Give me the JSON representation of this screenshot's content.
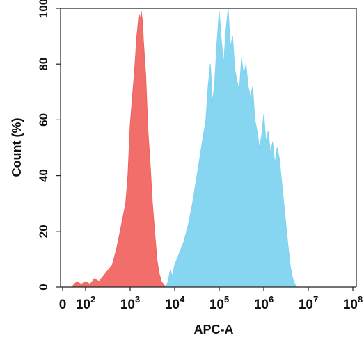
{
  "chart_data": {
    "type": "area",
    "xlabel": "APC-A",
    "ylabel": "Count  (%)",
    "x_scale": "log",
    "xlim": [
      0,
      100000000
    ],
    "ylim": [
      0,
      100
    ],
    "grid": false,
    "x_ticks": [
      {
        "value": 0,
        "base": "0",
        "exp": ""
      },
      {
        "value": 100,
        "base": "10",
        "exp": "2"
      },
      {
        "value": 1000,
        "base": "10",
        "exp": "3"
      },
      {
        "value": 10000,
        "base": "10",
        "exp": "4"
      },
      {
        "value": 100000,
        "base": "10",
        "exp": "5"
      },
      {
        "value": 1000000,
        "base": "10",
        "exp": "6"
      },
      {
        "value": 10000000,
        "base": "10",
        "exp": "7"
      },
      {
        "value": 100000000,
        "base": "10",
        "exp": "8"
      }
    ],
    "y_ticks": [
      "0",
      "20",
      "40",
      "60",
      "80",
      "100"
    ],
    "series": [
      {
        "color": "#f0625e",
        "points": [
          [
            40,
            0
          ],
          [
            50,
            1
          ],
          [
            63,
            2
          ],
          [
            80,
            1
          ],
          [
            100,
            2
          ],
          [
            126,
            1
          ],
          [
            158,
            3
          ],
          [
            200,
            2
          ],
          [
            251,
            4
          ],
          [
            316,
            6
          ],
          [
            398,
            8
          ],
          [
            501,
            14
          ],
          [
            631,
            22
          ],
          [
            708,
            26
          ],
          [
            794,
            30
          ],
          [
            891,
            40
          ],
          [
            1000,
            58
          ],
          [
            1122,
            68
          ],
          [
            1259,
            78
          ],
          [
            1413,
            90
          ],
          [
            1585,
            98
          ],
          [
            1700,
            96
          ],
          [
            1778,
            99
          ],
          [
            1900,
            95
          ],
          [
            1995,
            88
          ],
          [
            2239,
            76
          ],
          [
            2512,
            56
          ],
          [
            2818,
            44
          ],
          [
            3162,
            30
          ],
          [
            3548,
            20
          ],
          [
            3981,
            10
          ],
          [
            4467,
            5
          ],
          [
            5012,
            2
          ],
          [
            5623,
            1
          ],
          [
            6310,
            0
          ]
        ]
      },
      {
        "color": "#7fd3f0",
        "points": [
          [
            6310,
            0
          ],
          [
            7079,
            2
          ],
          [
            7943,
            6
          ],
          [
            8913,
            4
          ],
          [
            10000,
            8
          ],
          [
            12589,
            12
          ],
          [
            15849,
            16
          ],
          [
            19953,
            22
          ],
          [
            25119,
            30
          ],
          [
            31623,
            40
          ],
          [
            39811,
            50
          ],
          [
            50119,
            60
          ],
          [
            56234,
            72
          ],
          [
            63096,
            80
          ],
          [
            70795,
            66
          ],
          [
            79433,
            74
          ],
          [
            89125,
            88
          ],
          [
            100000,
            99
          ],
          [
            112202,
            88
          ],
          [
            125893,
            80
          ],
          [
            141254,
            92
          ],
          [
            158489,
            100
          ],
          [
            177828,
            86
          ],
          [
            199526,
            90
          ],
          [
            223872,
            78
          ],
          [
            251189,
            74
          ],
          [
            281838,
            70
          ],
          [
            316228,
            82
          ],
          [
            354813,
            76
          ],
          [
            398107,
            80
          ],
          [
            446684,
            72
          ],
          [
            501187,
            68
          ],
          [
            562341,
            72
          ],
          [
            630957,
            60
          ],
          [
            707946,
            56
          ],
          [
            794328,
            50
          ],
          [
            891251,
            54
          ],
          [
            1000000,
            62
          ],
          [
            1122018,
            52
          ],
          [
            1258925,
            56
          ],
          [
            1412538,
            48
          ],
          [
            1584893,
            52
          ],
          [
            1778279,
            44
          ],
          [
            1995262,
            50
          ],
          [
            2238721,
            46
          ],
          [
            2511886,
            38
          ],
          [
            2818383,
            30
          ],
          [
            3162278,
            22
          ],
          [
            3548134,
            14
          ],
          [
            3981072,
            7
          ],
          [
            4466836,
            3
          ],
          [
            5011872,
            1
          ],
          [
            5623413,
            0
          ]
        ]
      }
    ]
  }
}
